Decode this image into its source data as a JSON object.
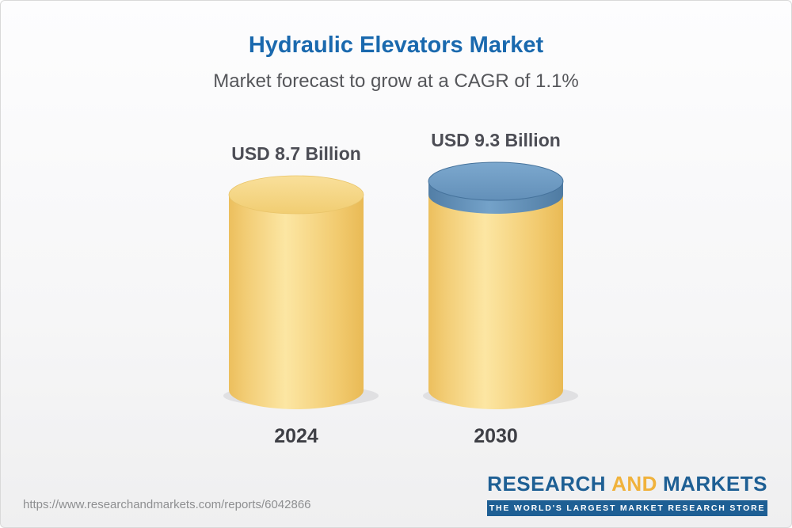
{
  "header": {
    "title": "Hydraulic Elevators Market",
    "subtitle": "Market forecast to grow at a CAGR of 1.1%"
  },
  "chart_data": {
    "type": "bar",
    "variant": "3d-cylinder",
    "title": "Hydraulic Elevators Market",
    "subtitle": "Market forecast to grow at a CAGR of 1.1%",
    "unit": "USD Billion",
    "cagr_percent": 1.1,
    "categories": [
      "2024",
      "2030"
    ],
    "values": [
      8.7,
      9.3
    ],
    "value_labels": [
      "USD 8.7 Billion",
      "USD 9.3 Billion"
    ],
    "series": [
      {
        "name": "Market size",
        "values": [
          8.7,
          9.3
        ]
      }
    ],
    "ylim": [
      0,
      9.3
    ],
    "grid": false,
    "legend": "none",
    "colors": {
      "bar_base": "#f5cd6d",
      "growth_cap": "#6697c0",
      "title": "#1a69ae",
      "subtitle": "#55565a"
    }
  },
  "footer": {
    "url": "https://www.researchandmarkets.com/reports/6042866",
    "logo": {
      "research": "RESEARCH",
      "and": "AND",
      "markets": "MARKETS",
      "tagline": "THE WORLD'S LARGEST MARKET RESEARCH STORE"
    }
  }
}
